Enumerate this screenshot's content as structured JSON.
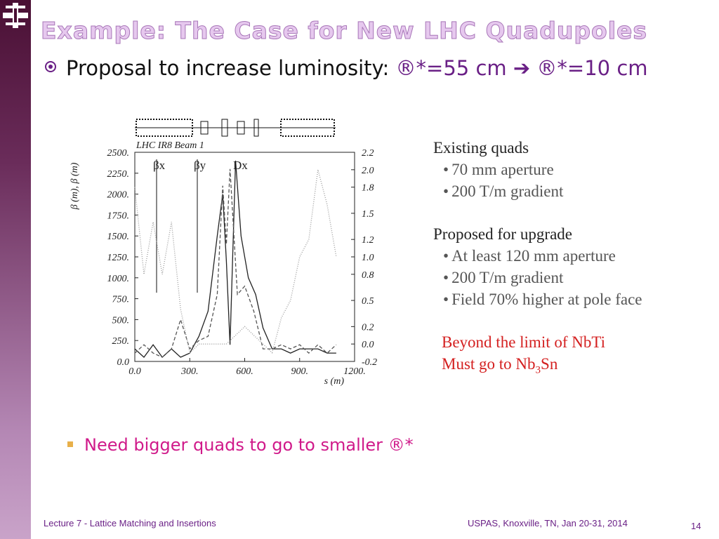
{
  "slide": {
    "title": "Example: The Case for New LHC Quadupoles",
    "bullet1": {
      "text": "Proposal to increase luminosity: ",
      "highlight": "®*=55 cm ➔ ®*=10 cm"
    },
    "notes": {
      "heading1": "Existing quads",
      "items1": [
        "70 mm aperture",
        "200 T/m gradient"
      ],
      "heading2": "Proposed for upgrade",
      "items2": [
        "At least 120 mm aperture",
        "200 T/m gradient",
        "Field 70% higher at pole face"
      ],
      "warning1": "Beyond the limit of NbTi",
      "warning2": [
        "Must go to Nb",
        "3",
        "Sn"
      ]
    },
    "bullet2": "Need bigger quads to go to smaller ®*",
    "footer_left": "Lecture 7 - Lattice Matching and Insertions",
    "footer_right": "USPAS, Knoxville, TN, Jan 20-31, 2014",
    "page_number": "14"
  },
  "figure": {
    "type": "line",
    "title": "LHC IR8 Beam 1",
    "ylabel": "β (m), β (m)",
    "xlabel": "s (m)",
    "xlim": [
      0,
      1200
    ],
    "xticks": [
      {
        "value": 0,
        "label": "0.0"
      },
      {
        "value": 300,
        "label": "300."
      },
      {
        "value": 600,
        "label": "600."
      },
      {
        "value": 900,
        "label": "900."
      },
      {
        "value": 1200,
        "label": "1200."
      }
    ],
    "ylim": [
      0,
      2500
    ],
    "yticks": [
      {
        "value": 0,
        "label": "0.0"
      },
      {
        "value": 250,
        "label": "250."
      },
      {
        "value": 500,
        "label": "500."
      },
      {
        "value": 750,
        "label": "750."
      },
      {
        "value": 1000,
        "label": "1000."
      },
      {
        "value": 1250,
        "label": "1250."
      },
      {
        "value": 1500,
        "label": "1500."
      },
      {
        "value": 1750,
        "label": "1750."
      },
      {
        "value": 2000,
        "label": "2000."
      },
      {
        "value": 2250,
        "label": "2250."
      },
      {
        "value": 2500,
        "label": "2500."
      }
    ],
    "y2lim": [
      -0.2,
      2.2
    ],
    "y2ticks": [
      {
        "value": -0.2,
        "label": "-0.2"
      },
      {
        "value": 0,
        "label": "0.0"
      },
      {
        "value": 0.2,
        "label": "0.2"
      },
      {
        "value": 0.5,
        "label": "0.5"
      },
      {
        "value": 0.8,
        "label": "0.8"
      },
      {
        "value": 1,
        "label": "1.0"
      },
      {
        "value": 1.2,
        "label": "1.2"
      },
      {
        "value": 1.5,
        "label": "1.5"
      },
      {
        "value": 1.8,
        "label": "1.8"
      },
      {
        "value": 2,
        "label": "2.0"
      },
      {
        "value": 2.2,
        "label": "2.2"
      }
    ],
    "series": [
      {
        "name": "βx",
        "color": "#222222",
        "dash": "none",
        "x": [
          0,
          50,
          100,
          150,
          200,
          250,
          300,
          350,
          400,
          450,
          480,
          500,
          520,
          550,
          580,
          620,
          660,
          700,
          750,
          800,
          850,
          900,
          950,
          1000,
          1050,
          1100
        ],
        "values": [
          150,
          50,
          200,
          50,
          150,
          50,
          100,
          300,
          600,
          1500,
          2000,
          1200,
          200,
          2400,
          1500,
          1000,
          800,
          400,
          150,
          150,
          100,
          150,
          150,
          150,
          100,
          100
        ]
      },
      {
        "name": "βy",
        "color": "#555555",
        "dash": "5,3",
        "x": [
          0,
          50,
          100,
          150,
          200,
          250,
          300,
          350,
          400,
          450,
          480,
          500,
          520,
          560,
          600,
          650,
          700,
          750,
          800,
          850,
          900,
          950,
          1000,
          1050,
          1100
        ],
        "values": [
          100,
          200,
          100,
          50,
          150,
          500,
          150,
          250,
          300,
          800,
          2100,
          1400,
          2300,
          800,
          900,
          600,
          150,
          150,
          200,
          150,
          200,
          100,
          200,
          100,
          200
        ]
      },
      {
        "name": "Dx",
        "color": "#999999",
        "dash": "1,2",
        "axis": "y2",
        "x": [
          0,
          50,
          100,
          150,
          200,
          250,
          300,
          350,
          400,
          450,
          500,
          550,
          600,
          650,
          700,
          750,
          800,
          850,
          900,
          950,
          1000,
          1050,
          1100
        ],
        "values": [
          1.8,
          0.8,
          1.4,
          0.8,
          1.4,
          0.4,
          -0.1,
          0,
          0,
          0,
          0,
          0.1,
          0.2,
          0.1,
          0,
          -0.1,
          0.3,
          0.5,
          1,
          1.2,
          2,
          1.6,
          1
        ]
      }
    ]
  }
}
